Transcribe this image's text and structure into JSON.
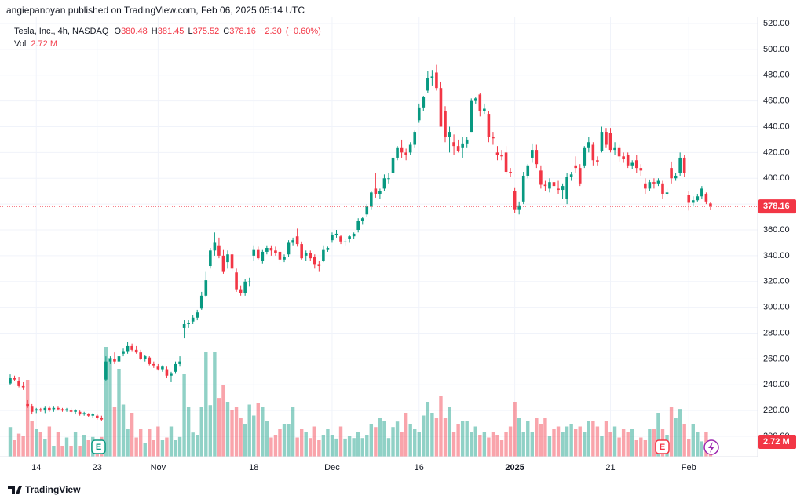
{
  "header": "angiepanoyan published on TradingView.com, Feb 06, 2025 05:14 UTC",
  "footer": "TradingView",
  "chart_data": {
    "type": "candlestick",
    "legend": {
      "symbol": "Tesla, Inc., 4h, NASDAQ",
      "open_label": "O",
      "high_label": "H",
      "low_label": "L",
      "close_label": "C",
      "change": "−2.30",
      "change_pct": "(−0.60%)",
      "volume_label": "Vol"
    },
    "volume_last_label": "2.72 M",
    "earnings_markers": [
      "E",
      "E"
    ],
    "up_color": "#089981",
    "down_color": "#f23645",
    "grid": true,
    "ylim": [
      200,
      520
    ],
    "yticks": [
      {
        "value": 200,
        "label": "200.00"
      },
      {
        "value": 220,
        "label": "220.00"
      },
      {
        "value": 240,
        "label": "240.00"
      },
      {
        "value": 260,
        "label": "260.00"
      },
      {
        "value": 280,
        "label": "280.00"
      },
      {
        "value": 300,
        "label": "300.00"
      },
      {
        "value": 320,
        "label": "320.00"
      },
      {
        "value": 340,
        "label": "340.00"
      },
      {
        "value": 360,
        "label": "360.00"
      },
      {
        "value": 380,
        "label": "380.00"
      },
      {
        "value": 400,
        "label": "400.00"
      },
      {
        "value": 420,
        "label": "420.00"
      },
      {
        "value": 440,
        "label": "440.00"
      },
      {
        "value": 460,
        "label": "460.00"
      },
      {
        "value": 480,
        "label": "480.00"
      },
      {
        "value": 500,
        "label": "500.00"
      },
      {
        "value": 520,
        "label": "520.00"
      }
    ],
    "categories": [
      null,
      null,
      null,
      null,
      null,
      null,
      "14",
      null,
      null,
      null,
      null,
      null,
      null,
      null,
      null,
      null,
      null,
      null,
      null,
      null,
      "23",
      null,
      null,
      null,
      null,
      null,
      null,
      null,
      null,
      null,
      null,
      null,
      null,
      null,
      "Nov",
      null,
      null,
      null,
      null,
      null,
      null,
      null,
      null,
      null,
      null,
      null,
      null,
      null,
      null,
      null,
      null,
      null,
      null,
      null,
      null,
      null,
      "18",
      null,
      null,
      null,
      null,
      null,
      null,
      null,
      null,
      null,
      null,
      null,
      null,
      null,
      null,
      null,
      null,
      null,
      "Dec",
      null,
      null,
      null,
      null,
      null,
      null,
      null,
      null,
      null,
      null,
      null,
      null,
      null,
      null,
      null,
      null,
      null,
      null,
      null,
      "16",
      null,
      null,
      null,
      null,
      null,
      null,
      null,
      null,
      null,
      null,
      null,
      null,
      null,
      null,
      null,
      null,
      null,
      null,
      null,
      null,
      null,
      "2025",
      null,
      null,
      null,
      null,
      null,
      null,
      null,
      null,
      null,
      null,
      null,
      null,
      null,
      null,
      null,
      null,
      null,
      null,
      null,
      null,
      null,
      "21",
      null,
      null,
      null,
      null,
      null,
      null,
      null,
      null,
      null,
      null,
      null,
      null,
      null,
      null,
      null,
      null,
      null,
      "Feb",
      null,
      null,
      null,
      null,
      null
    ],
    "open": [
      241,
      245,
      243,
      239,
      225,
      223,
      220,
      221,
      220,
      222,
      221,
      222,
      221,
      220,
      220,
      219,
      219,
      217,
      217,
      216,
      216,
      214,
      244,
      258,
      260,
      258,
      264,
      266,
      270,
      267,
      265,
      260,
      261,
      256,
      254,
      252,
      252,
      247,
      250,
      256,
      284,
      287,
      289,
      292,
      299,
      309,
      332,
      344,
      348,
      340,
      335,
      341,
      327,
      314,
      311,
      320,
      340,
      345,
      336,
      343,
      346,
      344,
      343,
      337,
      341,
      350,
      355,
      349,
      340,
      342,
      339,
      333,
      336,
      345,
      352,
      356,
      355,
      351,
      353,
      355,
      360,
      367,
      372,
      378,
      392,
      388,
      392,
      400,
      404,
      416,
      424,
      420,
      420,
      426,
      445,
      455,
      468,
      478,
      482,
      470,
      452,
      432,
      428,
      425,
      424,
      427,
      436,
      460,
      465,
      452,
      450,
      432,
      420,
      418,
      420,
      405,
      390,
      376,
      382,
      402,
      416,
      422,
      406,
      395,
      392,
      397,
      392,
      391,
      384,
      401,
      410,
      408,
      410,
      424,
      426,
      414,
      421,
      436,
      435,
      422,
      424,
      417,
      418,
      410,
      414,
      408,
      396,
      392,
      397,
      396,
      396,
      388,
      408,
      400,
      404,
      416,
      387,
      381,
      383,
      386,
      388,
      380.48
    ],
    "high": [
      248,
      247,
      246,
      242,
      228,
      225,
      222,
      222,
      223,
      223,
      223,
      223,
      222,
      222,
      222,
      221,
      220,
      219,
      218,
      218,
      217,
      216,
      262,
      262,
      265,
      264,
      268,
      273,
      272,
      270,
      267,
      263,
      262,
      258,
      256,
      255,
      254,
      250,
      258,
      262,
      290,
      290,
      294,
      298,
      312,
      328,
      346,
      358,
      354,
      345,
      344,
      344,
      330,
      317,
      322,
      323,
      348,
      347,
      345,
      348,
      348,
      347,
      346,
      341,
      352,
      354,
      361,
      351,
      344,
      344,
      341,
      336,
      348,
      347,
      358,
      360,
      356,
      353,
      356,
      358,
      369,
      370,
      380,
      390,
      404,
      392,
      403,
      404,
      418,
      425,
      430,
      423,
      428,
      437,
      458,
      464,
      483,
      484,
      488,
      475,
      456,
      440,
      434,
      430,
      432,
      432,
      462,
      463,
      466,
      458,
      452,
      436,
      425,
      422,
      425,
      408,
      393,
      382,
      405,
      411,
      427,
      426,
      410,
      398,
      400,
      399,
      398,
      396,
      404,
      405,
      417,
      411,
      425,
      432,
      428,
      417,
      440,
      439,
      439,
      428,
      426,
      420,
      420,
      414,
      418,
      411,
      400,
      399,
      400,
      400,
      398,
      392,
      413,
      404,
      420,
      418,
      390,
      386,
      388,
      394,
      389,
      381.45
    ],
    "low": [
      240,
      243,
      238,
      236,
      222,
      217,
      218,
      219,
      218,
      219,
      219,
      220,
      219,
      219,
      218,
      217,
      216,
      216,
      215,
      214,
      213,
      212,
      243,
      256,
      256,
      256,
      262,
      264,
      266,
      264,
      259,
      258,
      255,
      253,
      251,
      250,
      245,
      242,
      249,
      254,
      276,
      284,
      287,
      290,
      298,
      308,
      330,
      340,
      338,
      326,
      330,
      328,
      312,
      309,
      309,
      316,
      336,
      337,
      334,
      341,
      340,
      340,
      334,
      335,
      339,
      348,
      347,
      337,
      336,
      336,
      330,
      328,
      335,
      343,
      350,
      354,
      349,
      348,
      350,
      353,
      358,
      364,
      370,
      376,
      385,
      384,
      390,
      396,
      402,
      414,
      416,
      414,
      418,
      424,
      443,
      452,
      466,
      472,
      468,
      440,
      428,
      420,
      418,
      420,
      416,
      424,
      436,
      458,
      448,
      450,
      428,
      426,
      414,
      414,
      403,
      401,
      373,
      372,
      380,
      400,
      412,
      408,
      392,
      390,
      389,
      391,
      388,
      384,
      380,
      398,
      404,
      394,
      408,
      420,
      410,
      410,
      420,
      424,
      420,
      418,
      413,
      412,
      408,
      407,
      404,
      402,
      388,
      390,
      392,
      394,
      384,
      386,
      396,
      398,
      402,
      401,
      375,
      378,
      382,
      384,
      380,
      375.52
    ],
    "close": [
      245,
      244,
      239,
      238,
      223,
      219,
      221,
      220,
      222,
      220,
      222,
      221,
      220,
      221,
      219,
      220,
      217,
      218,
      216,
      217,
      214,
      213,
      258,
      260,
      258,
      262,
      266,
      270,
      267,
      265,
      260,
      262,
      256,
      255,
      252,
      254,
      247,
      249,
      256,
      258,
      287,
      288,
      292,
      296,
      309,
      321,
      344,
      350,
      340,
      328,
      341,
      330,
      314,
      311,
      320,
      320,
      345,
      338,
      343,
      346,
      344,
      342,
      337,
      339,
      350,
      352,
      349,
      338,
      342,
      338,
      333,
      332,
      345,
      346,
      356,
      357,
      351,
      351,
      355,
      357,
      367,
      369,
      378,
      389,
      388,
      390,
      400,
      400,
      416,
      424,
      420,
      418,
      426,
      436,
      455,
      463,
      478,
      479,
      470,
      440,
      432,
      436,
      425,
      421,
      427,
      430,
      460,
      462,
      452,
      454,
      432,
      431,
      418,
      417,
      405,
      404,
      376,
      379,
      402,
      410,
      422,
      411,
      395,
      394,
      397,
      394,
      391,
      394,
      401,
      403,
      408,
      396,
      424,
      428,
      414,
      413,
      436,
      426,
      422,
      424,
      417,
      415,
      410,
      412,
      408,
      406,
      392,
      397,
      396,
      398,
      388,
      389,
      400,
      402,
      416,
      404,
      381,
      383,
      386,
      392,
      382,
      378.16
    ],
    "volume": [
      5.4,
      3,
      4.2,
      3.8,
      14,
      6.5,
      5,
      4.5,
      3.2,
      5.5,
      2,
      4.5,
      2,
      3.5,
      2,
      4.5,
      2,
      4,
      3,
      3.6,
      2.4,
      3.6,
      20,
      18,
      9,
      16,
      9.5,
      5,
      8,
      3.5,
      5,
      2.5,
      5,
      3,
      5.5,
      3,
      3.5,
      5.5,
      3,
      3.6,
      15,
      9,
      4.4,
      4,
      9,
      19,
      9.4,
      19,
      10.7,
      13,
      10,
      8.5,
      9,
      7,
      6,
      9.5,
      7.5,
      9.8,
      9,
      6.5,
      3.5,
      4,
      5,
      6,
      6,
      9,
      3.5,
      5,
      4.5,
      3.4,
      5.5,
      3,
      4,
      5,
      4,
      3.3,
      5.5,
      3.3,
      3.8,
      3.4,
      4.5,
      3.4,
      4,
      6,
      5.4,
      7,
      6.5,
      3.4,
      5.4,
      6.4,
      4.5,
      8,
      6,
      5,
      4.5,
      7.5,
      10,
      8,
      7,
      11,
      7,
      9,
      4.5,
      6,
      6.5,
      6.5,
      4.5,
      5.5,
      4,
      4.5,
      3.5,
      4.5,
      4,
      3,
      4.5,
      5.5,
      10,
      7,
      4.5,
      6.5,
      4.5,
      7,
      6,
      7,
      3.8,
      5,
      5.5,
      4.5,
      5.5,
      6,
      5,
      5.5,
      4.5,
      6.5,
      6.5,
      5.5,
      3.8,
      6.5,
      4.5,
      5.5,
      3.5,
      5,
      4.5,
      5,
      3,
      3.5,
      3,
      5,
      5,
      8,
      5,
      4,
      9,
      7,
      8.7,
      6,
      3.2,
      6,
      4.5,
      2.8,
      4.5,
      2.72
    ]
  }
}
